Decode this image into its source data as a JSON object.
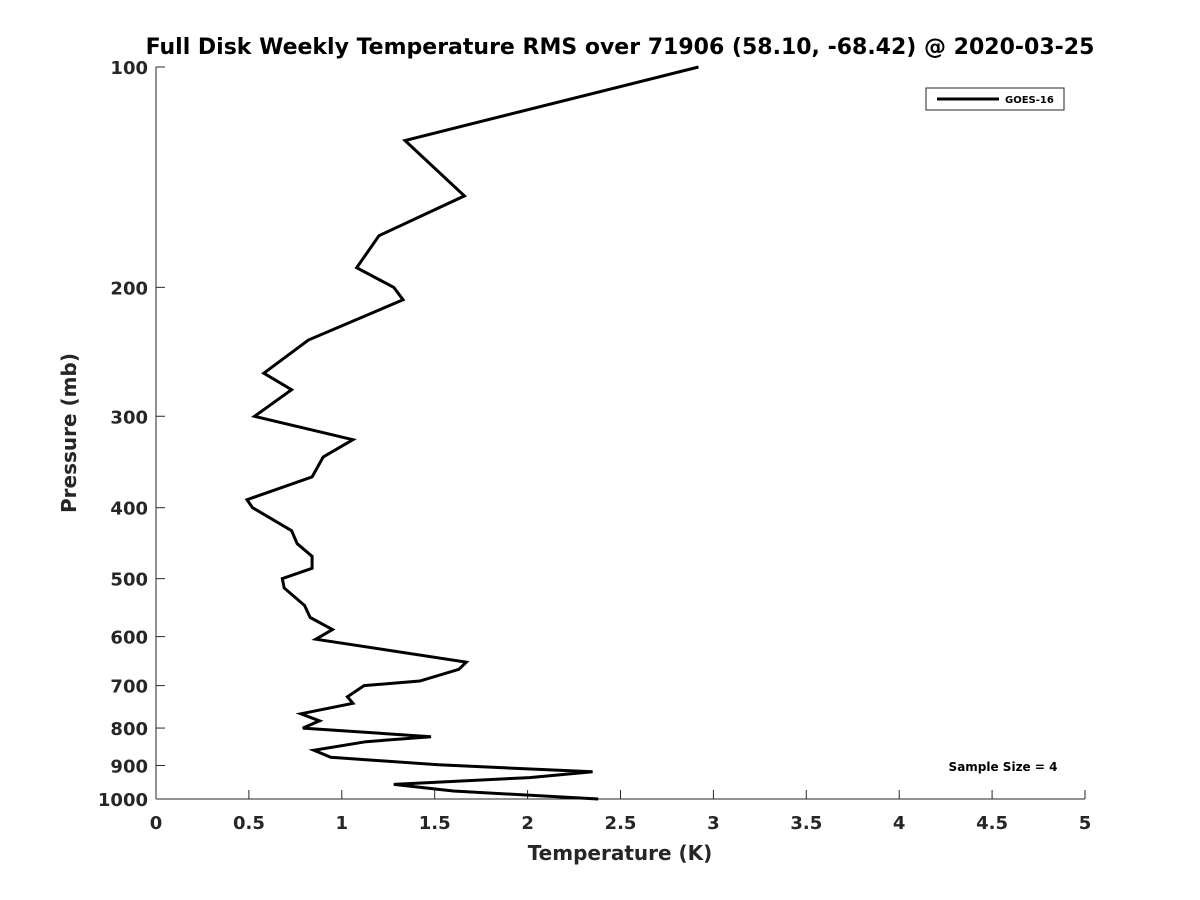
{
  "chart_data": {
    "type": "line",
    "title": "Full Disk Weekly Temperature RMS over 71906 (58.10, -68.42) @ 2020-03-25",
    "xlabel": "Temperature (K)",
    "ylabel": "Pressure (mb)",
    "xlim": [
      0,
      5
    ],
    "ylim": [
      100,
      1000
    ],
    "y_scale": "log",
    "y_reversed": true,
    "x_ticks": [
      "0",
      "0.5",
      "1",
      "1.5",
      "2",
      "2.5",
      "3",
      "3.5",
      "4",
      "4.5",
      "5"
    ],
    "y_ticks": [
      "100",
      "200",
      "300",
      "400",
      "500",
      "600",
      "700",
      "800",
      "900",
      "1000"
    ],
    "grid": false,
    "legend_position": "top-right",
    "annotation": "Sample Size = 4",
    "line_color": "#000000",
    "series": [
      {
        "name": "GOES-16",
        "x": [
          2.92,
          1.34,
          1.66,
          1.2,
          1.08,
          1.28,
          1.33,
          0.82,
          0.58,
          0.73,
          0.53,
          1.06,
          0.9,
          0.84,
          0.49,
          0.52,
          0.73,
          0.76,
          0.84,
          0.84,
          0.68,
          0.69,
          0.8,
          0.83,
          0.95,
          0.86,
          1.67,
          1.63,
          1.42,
          1.12,
          1.03,
          1.06,
          0.78,
          0.88,
          0.79,
          1.48,
          1.13,
          0.85,
          0.94,
          1.52,
          2.35,
          2.01,
          1.28,
          1.6,
          2.38
        ],
        "y": [
          100,
          126,
          150,
          170,
          188,
          200,
          208,
          236,
          262,
          276,
          300,
          323,
          341,
          363,
          390,
          400,
          430,
          448,
          466,
          484,
          500,
          515,
          544,
          565,
          587,
          605,
          650,
          665,
          690,
          700,
          725,
          740,
          765,
          782,
          800,
          822,
          835,
          858,
          877,
          898,
          918,
          935,
          955,
          975,
          1000
        ]
      }
    ]
  }
}
